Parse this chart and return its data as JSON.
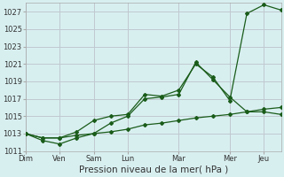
{
  "background_color": "#d8eff0",
  "grid_color": "#c0c8d0",
  "line_color": "#1a5c1a",
  "xlabel": "Pression niveau de la mer( hPa )",
  "ylim": [
    1011,
    1028
  ],
  "yticks": [
    1011,
    1013,
    1015,
    1017,
    1019,
    1021,
    1023,
    1025,
    1027
  ],
  "day_labels": [
    "Dim",
    "Ven",
    "Sam",
    "Lun",
    "Mar",
    "Mer",
    "Jeu"
  ],
  "day_x": [
    0,
    2,
    4,
    6,
    9,
    12,
    14
  ],
  "num_points": 16,
  "series": [
    [
      1013.0,
      1012.5,
      1012.5,
      1012.8,
      1013.0,
      1013.2,
      1013.5,
      1014.0,
      1014.2,
      1014.5,
      1014.8,
      1015.0,
      1015.2,
      1015.5,
      1015.8,
      1016.0
    ],
    [
      1013.0,
      1012.2,
      1011.8,
      1012.5,
      1013.0,
      1014.2,
      1015.0,
      1017.0,
      1017.2,
      1017.5,
      1021.2,
      1019.2,
      1017.2,
      1015.5,
      1015.5,
      1015.2
    ],
    [
      1013.0,
      1012.5,
      1012.5,
      1013.2,
      1014.5,
      1015.0,
      1015.2,
      1017.5,
      1017.3,
      1018.0,
      1021.0,
      1019.5,
      1016.8,
      1026.8,
      1027.8,
      1027.2
    ]
  ]
}
